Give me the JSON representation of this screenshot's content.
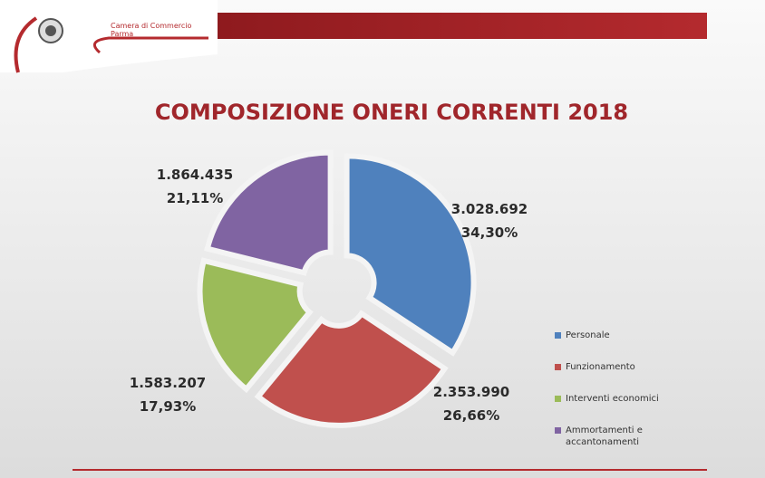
{
  "header": {
    "org_line1": "Camera di Commercio",
    "org_line2": "Parma"
  },
  "chart_data": {
    "type": "pie",
    "title": "COMPOSIZIONE ONERI CORRENTI 2018",
    "categories": [
      "Personale",
      "Funzionamento",
      "Interventi economici",
      "Ammortamenti e accantonamenti"
    ],
    "values": [
      3028692,
      2353990,
      1583207,
      1864435
    ],
    "value_labels": [
      "3.028.692",
      "2.353.990",
      "1.583.207",
      "1.864.435"
    ],
    "percentages": [
      34.3,
      26.66,
      17.93,
      21.11
    ],
    "percentage_labels": [
      "34,30%",
      "26,66%",
      "17,93%",
      "21,11%"
    ],
    "colors": [
      "#4f81bd",
      "#c0504d",
      "#9bbb59",
      "#8064a2"
    ],
    "legend": "right"
  }
}
